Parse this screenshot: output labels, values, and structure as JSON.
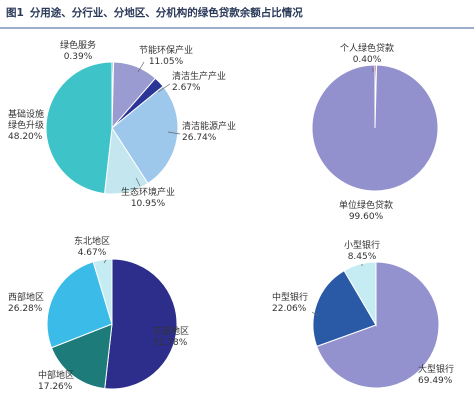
{
  "figure": {
    "label": "图1",
    "title": "分用途、分行业、分地区、分机构的绿色贷款余额占比情况"
  },
  "chart_data": [
    {
      "type": "pie",
      "id": "by-industry",
      "slices": [
        {
          "label": "绿色服务",
          "value": 0.39,
          "value_text": "0.39%",
          "color": "#7fb2c4"
        },
        {
          "label": "节能环保产业",
          "value": 11.05,
          "value_text": "11.05%",
          "color": "#9a9bd0"
        },
        {
          "label": "清洁生产产业",
          "value": 2.67,
          "value_text": "2.67%",
          "color": "#2a3595"
        },
        {
          "label": "清洁能源产业",
          "value": 26.74,
          "value_text": "26.74%",
          "color": "#9ec7ec"
        },
        {
          "label": "生态环境产业",
          "value": 10.95,
          "value_text": "10.95%",
          "color": "#c3e6ef"
        },
        {
          "label": "基础设施绿色升级",
          "value": 48.2,
          "value_text": "48.20%",
          "color": "#3ec3c8"
        }
      ]
    },
    {
      "type": "pie",
      "id": "by-use",
      "slices": [
        {
          "label": "个人绿色贷款",
          "value": 0.4,
          "value_text": "0.40%",
          "color": "#b83a55"
        },
        {
          "label": "单位绿色贷款",
          "value": 99.6,
          "value_text": "99.60%",
          "color": "#9391cd"
        }
      ]
    },
    {
      "type": "pie",
      "id": "by-region",
      "slices": [
        {
          "label": "东部地区",
          "value": 51.78,
          "value_text": "51.78%",
          "color": "#2d2e8c"
        },
        {
          "label": "中部地区",
          "value": 17.26,
          "value_text": "17.26%",
          "color": "#1d7b7a"
        },
        {
          "label": "西部地区",
          "value": 26.28,
          "value_text": "26.28%",
          "color": "#3bbce8"
        },
        {
          "label": "东北地区",
          "value": 4.67,
          "value_text": "4.67%",
          "color": "#c6ecf3"
        }
      ]
    },
    {
      "type": "pie",
      "id": "by-institution",
      "slices": [
        {
          "label": "大型银行",
          "value": 69.49,
          "value_text": "69.49%",
          "color": "#9392cf"
        },
        {
          "label": "中型银行",
          "value": 22.06,
          "value_text": "22.06%",
          "color": "#2a5aa5"
        },
        {
          "label": "小型银行",
          "value": 8.45,
          "value_text": "8.45%",
          "color": "#c6ecf3"
        }
      ]
    }
  ]
}
